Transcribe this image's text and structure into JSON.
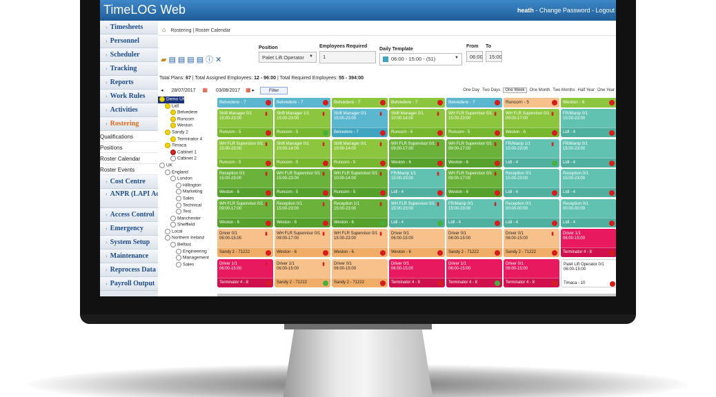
{
  "app": {
    "title": "TimeLOG Web",
    "user": "heath",
    "change_password": "Change Password",
    "logout": "Logout"
  },
  "sidebar": {
    "items": [
      "Timesheets",
      "Personnel",
      "Scheduler",
      "Tracking",
      "Reports",
      "Work Rules",
      "Activities",
      "Rostering"
    ],
    "sub_items": [
      "Qualifications",
      "Positions",
      "Roster Calendar",
      "Roster Events"
    ],
    "items_after": [
      "Cost Centre",
      "ANPR (LAPI Access)",
      "Access Control",
      "Emergency",
      "System Setup",
      "Maintenance",
      "Reprocess Data",
      "Payroll Output"
    ]
  },
  "breadcrumb": {
    "first": "Rostering",
    "second": "Roster Calendar"
  },
  "filters": {
    "position_label": "Position",
    "position_value": "Palet Lift Operator",
    "employees_label": "Employees Required",
    "employees_value": "1",
    "template_label": "Daily Template",
    "template_value": "06:00 - 15:00 - (51)",
    "from_label": "From",
    "from_value": "06:00",
    "to_label": "To",
    "to_value": "15:00"
  },
  "totals": {
    "prefix1": "Total Plans: ",
    "plans": "67",
    "prefix2": " | Total Assigned Employees: ",
    "assigned": "12 - 96:00",
    "prefix3": " | Total Required Employees: ",
    "required": "55 - 394:00"
  },
  "datebar": {
    "start": "28/07/2017",
    "end": "03/08/2017",
    "filter": "Filter",
    "views": [
      "One Day",
      "Two Days",
      "One Week",
      "One Month",
      "Two Months",
      "Half Year",
      "One Year"
    ],
    "selected_view": "One Week"
  },
  "tree": [
    {
      "label": "Demo UK",
      "dot": "y",
      "indent": 0,
      "root": true
    },
    {
      "label": "Lidl",
      "dot": "y",
      "indent": 1
    },
    {
      "label": "Belvedere",
      "dot": "y",
      "indent": 2
    },
    {
      "label": "Runcorn",
      "dot": "y",
      "indent": 2
    },
    {
      "label": "Weston",
      "dot": "y",
      "indent": 2
    },
    {
      "label": "Sandy 2",
      "dot": "y",
      "indent": 1
    },
    {
      "label": "Terminator 4",
      "dot": "y",
      "indent": 2
    },
    {
      "label": "Timaca",
      "dot": "y",
      "indent": 1
    },
    {
      "label": "Cabinet 1",
      "dot": "r",
      "indent": 2
    },
    {
      "label": "Cabinet 2",
      "dot": "w",
      "indent": 2
    },
    {
      "label": "UK",
      "dot": "w",
      "indent": 0
    },
    {
      "label": "England",
      "dot": "w",
      "indent": 1
    },
    {
      "label": "London",
      "dot": "w",
      "indent": 2
    },
    {
      "label": "Hillington",
      "dot": "w",
      "indent": 3
    },
    {
      "label": "Marketing",
      "dot": "w",
      "indent": 3
    },
    {
      "label": "Sales",
      "dot": "w",
      "indent": 3
    },
    {
      "label": "Technical",
      "dot": "w",
      "indent": 3
    },
    {
      "label": "Test",
      "dot": "w",
      "indent": 3
    },
    {
      "label": "Manchester",
      "dot": "w",
      "indent": 2
    },
    {
      "label": "Sheffield",
      "dot": "w",
      "indent": 2
    },
    {
      "label": "Local",
      "dot": "w",
      "indent": 1
    },
    {
      "label": "Northern Ireland",
      "dot": "w",
      "indent": 1
    },
    {
      "label": "Belfast",
      "dot": "w",
      "indent": 2
    },
    {
      "label": "Engineering",
      "dot": "w",
      "indent": 3
    },
    {
      "label": "Management",
      "dot": "w",
      "indent": 3
    },
    {
      "label": "Sales",
      "dot": "w",
      "indent": 3
    }
  ],
  "columns": [
    {
      "header": "Belvedere - 7",
      "hcls": "t1",
      "cards": [
        {
          "role": "Shift Manager 0/1",
          "time": "15:00-23:00",
          "site": "Runcorn - 5",
          "cls": "g1",
          "status": "r",
          "bin": true
        },
        {
          "role": "WH FLR Supervisor 0/1",
          "time": "15:00-23:00",
          "site": "Runcorn - 5",
          "cls": "g1",
          "status": "r",
          "bin": true
        },
        {
          "role": "Reception 0/1",
          "time": "15:00-23:00",
          "site": "Weston - 6",
          "cls": "g2",
          "status": "r",
          "bin": true
        },
        {
          "role": "WH FLR Supervisor 0/1",
          "time": "09:00-17:00",
          "site": "Weston - 6",
          "cls": "g2",
          "status": "r",
          "bin": true
        },
        {
          "role": "Driver 0/1",
          "time": "06:00-15:00",
          "site": "Sandy 2 - 71222",
          "cls": "o1",
          "status": "r",
          "bin": true
        },
        {
          "role": "Driver 1/1",
          "time": "06:00-15:00",
          "site": "Terminator 4 - 8",
          "cls": "p1",
          "status": "r",
          "bin": true
        }
      ]
    },
    {
      "header": "Belvedere - 7",
      "hcls": "t1",
      "cards": [
        {
          "role": "Shift Manager 1/1",
          "time": "15:00-23:00",
          "site": "Runcorn - 5",
          "cls": "g1",
          "status": "g",
          "bin": true
        },
        {
          "role": "Shift Manager 0/1",
          "time": "10:00-14:00",
          "site": "Runcorn - 5",
          "cls": "g1",
          "status": "r",
          "bin": true
        },
        {
          "role": "WH FLR Supervisor 0/1",
          "time": "15:00-23:00",
          "site": "Runcorn - 5",
          "cls": "g2",
          "status": "r",
          "bin": true
        },
        {
          "role": "Reception 0/1",
          "time": "15:00-23:00",
          "site": "Weston - 6",
          "cls": "g2",
          "status": "r",
          "bin": true
        },
        {
          "role": "WH FLR Supervisor 0/1",
          "time": "09:00-17:00",
          "site": "Weston - 6",
          "cls": "o1",
          "status": "r",
          "bin": true
        },
        {
          "role": "Driver 1/1",
          "time": "06:00-15:00",
          "site": "Sandy 2 - 71222",
          "cls": "o1",
          "status": "g",
          "bin": true
        }
      ]
    },
    {
      "header": "Belvedere - 7",
      "hcls": "g1",
      "cards": [
        {
          "role": "Shift Manager 0/1",
          "time": "15:00-23:00",
          "site": "Belvedere - 7",
          "cls": "t1",
          "status": "r",
          "bin": true
        },
        {
          "role": "Shift Manager 0/1",
          "time": "10:00-14:00",
          "site": "Runcorn - 5",
          "cls": "g1",
          "status": "r",
          "bin": true
        },
        {
          "role": "WH FLR Supervisor 0/1",
          "time": "10:00-14:00",
          "site": "Runcorn - 5",
          "cls": "g2",
          "status": "r",
          "bin": true
        },
        {
          "role": "Reception 1/1",
          "time": "15:00-23:00",
          "site": "Weston - 6",
          "cls": "g2",
          "status": "g",
          "bin": true
        },
        {
          "role": "WH FLR Supervisor 0/1",
          "time": "15:00-23:00",
          "site": "Weston - 6",
          "cls": "o1",
          "status": "r",
          "bin": true
        },
        {
          "role": "Driver 0/1",
          "time": "06:00-15:00",
          "site": "Sandy 2 - 71222",
          "cls": "o1",
          "status": "r",
          "bin": false
        }
      ]
    },
    {
      "header": "Belvedere - 7",
      "hcls": "g1",
      "cards": [
        {
          "role": "Shift Manager 0/1",
          "time": "10:00-14:00",
          "site": "Runcorn - 5",
          "cls": "g1",
          "status": "r",
          "bin": true
        },
        {
          "role": "WH FLR Supervisor 0/1",
          "time": "09:00-17:00",
          "site": "Weston - 6",
          "cls": "g2",
          "status": "r",
          "bin": true
        },
        {
          "role": "FR/Manip 1/1",
          "time": "15:00-23:00",
          "site": "Lidl - 4",
          "cls": "t2",
          "status": "r",
          "bin": true
        },
        {
          "role": "WH FLR Supervisor 0/1",
          "time": "15:00-23:00",
          "site": "Lidl - 4",
          "cls": "t2",
          "status": "g",
          "bin": true
        },
        {
          "role": "Driver 0/1",
          "time": "06:00-15:00",
          "site": "Weston - 6",
          "cls": "o1",
          "status": "r",
          "bin": false
        },
        {
          "role": "Driver 0/1",
          "time": "06:00-15:00",
          "site": "Terminator 4 - 8",
          "cls": "p1",
          "status": "r",
          "bin": false
        }
      ]
    },
    {
      "header": "Belvedere - 7",
      "hcls": "t1",
      "cards": [
        {
          "role": "WH FLR Supervisor 0/1",
          "time": "15:00-23:00",
          "site": "Runcorn - 5",
          "cls": "g1",
          "status": "r",
          "bin": true
        },
        {
          "role": "WH FLR Supervisor 0/1",
          "time": "09:00-17:00",
          "site": "Weston - 6",
          "cls": "g2",
          "status": "r",
          "bin": true
        },
        {
          "role": "WH FLR Supervisor 0/1",
          "time": "09:00-17:00",
          "site": "Weston - 6",
          "cls": "g2",
          "status": "r",
          "bin": true
        },
        {
          "role": "FR/Manip 0/1",
          "time": "15:00-23:00",
          "site": "Lidl - 4",
          "cls": "t2",
          "status": "r",
          "bin": true
        },
        {
          "role": "Driver 0/1",
          "time": "06:00-15:00",
          "site": "Sandy 2 - 71222",
          "cls": "o1",
          "status": "r",
          "bin": false
        },
        {
          "role": "Driver 1/1",
          "time": "06:00-15:00",
          "site": "Terminator 4 - 8",
          "cls": "p1",
          "status": "g",
          "bin": false
        }
      ]
    },
    {
      "header": "Runcorn - 5",
      "hcls": "o1",
      "cards": [
        {
          "role": "WH FLR Supervisor 0/1",
          "time": "09:00-17:00",
          "site": "Weston - 6",
          "cls": "g1",
          "status": "r",
          "bin": true
        },
        {
          "role": "FR/Manip 1/1",
          "time": "15:00-23:00",
          "site": "Lidl - 4",
          "cls": "t2",
          "status": "g",
          "bin": true
        },
        {
          "role": "Reception 0/1",
          "time": "15:00-23:00",
          "site": "Lidl - 4",
          "cls": "t2",
          "status": "r",
          "bin": false
        },
        {
          "role": "Reception 0/1",
          "time": "00:00-00:00",
          "site": "Lidl - 4",
          "cls": "t2",
          "status": "r",
          "bin": false
        },
        {
          "role": "Driver 0/1",
          "time": "06:00-15:00",
          "site": "Sandy 2 - 71222",
          "cls": "o1",
          "status": "r",
          "bin": true
        },
        {
          "role": "Driver 0/1",
          "time": "06:00-15:00",
          "site": "Terminator 4 - 8",
          "cls": "p1",
          "status": "r",
          "bin": false
        }
      ]
    },
    {
      "header": "Weston - 6",
      "hcls": "g1",
      "cards": [
        {
          "role": "FR/Manip 0/1",
          "time": "15:00-23:00",
          "site": "Lidl - 4",
          "cls": "t2",
          "status": "r",
          "bin": false
        },
        {
          "role": "FR/Manip 0/1",
          "time": "15:00-23:00",
          "site": "Lidl - 4",
          "cls": "t2",
          "status": "r",
          "bin": false
        },
        {
          "role": "Reception 0/1",
          "time": "15:00-23:00",
          "site": "Lidl - 4",
          "cls": "t2",
          "status": "r",
          "bin": false
        },
        {
          "role": "Reception 0/1",
          "time": "00:00-00:00",
          "site": "Lidl - 4",
          "cls": "t2",
          "status": "r",
          "bin": false
        },
        {
          "role": "Driver 1/1",
          "time": "06:00-15:00",
          "site": "Terminator 4 - 8",
          "cls": "p1",
          "status": "r",
          "bin": false
        },
        {
          "role": "Palet Lift Operator 0/1",
          "time": "06:00-15:00",
          "site": "Timaca - 10",
          "cls": "w1",
          "status": "r",
          "bin": false
        }
      ]
    }
  ],
  "colors": {
    "header_blue": "#2a6fb5",
    "active_menu": "#e06a1a",
    "green": "#8cc63f",
    "teal": "#5bb7cf",
    "orange": "#f7c18c",
    "pink": "#e8195e"
  }
}
